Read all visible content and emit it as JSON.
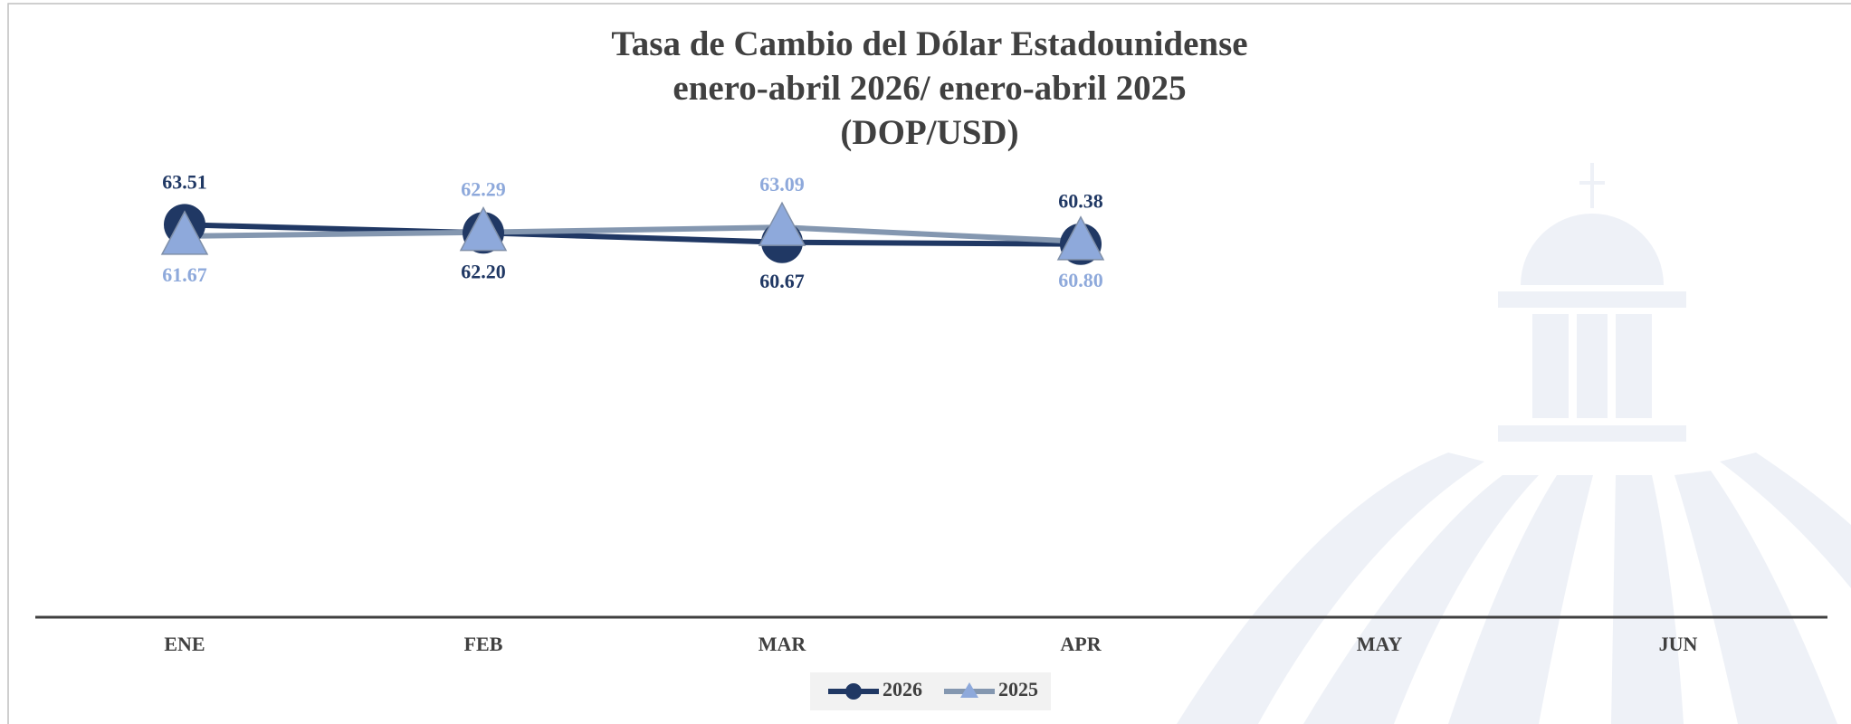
{
  "chart_data": {
    "type": "line",
    "title": [
      "Tasa de Cambio del Dólar Estadounidense",
      "enero-abril 2026/ enero-abril 2025",
      "(DOP/USD)"
    ],
    "categories": [
      "ENE",
      "FEB",
      "MAR",
      "APR",
      "MAY",
      "JUN"
    ],
    "series": [
      {
        "name": "2026",
        "color": "#203864",
        "marker": "circle",
        "values": [
          63.51,
          62.2,
          60.67,
          60.38,
          null,
          null
        ],
        "value_labels": [
          "63.51",
          "62.20",
          "60.67",
          "60.38",
          null,
          null
        ]
      },
      {
        "name": "2025",
        "color": "#8ea9db",
        "marker": "triangle",
        "values": [
          61.67,
          62.29,
          63.09,
          60.8,
          null,
          null
        ],
        "value_labels": [
          "61.67",
          "62.29",
          "63.09",
          "60.80",
          null,
          null
        ]
      }
    ],
    "ylim": [
      0,
      70
    ],
    "grid": false,
    "legend": "bottom"
  }
}
